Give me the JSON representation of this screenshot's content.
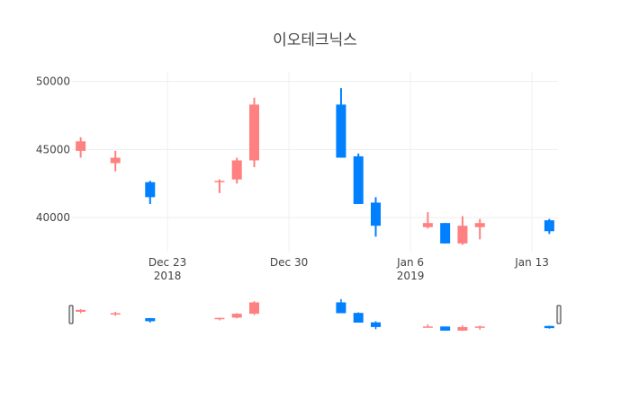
{
  "chart_data": {
    "type": "candlestick",
    "title": "이오테크닉스",
    "xlabel": "",
    "ylabel": "",
    "x_range": [
      "2018-12-18",
      "2019-01-14"
    ],
    "ylim": [
      37500,
      50700
    ],
    "y_ticks": [
      40000,
      45000,
      50000
    ],
    "y_tick_labels": [
      "40000",
      "45000",
      "50000"
    ],
    "x_ticks": [
      {
        "date": "2018-12-23",
        "label": "Dec 23",
        "sublabel": "2018"
      },
      {
        "date": "2018-12-30",
        "label": "Dec 30",
        "sublabel": ""
      },
      {
        "date": "2019-01-06",
        "label": "Jan 6",
        "sublabel": "2019"
      },
      {
        "date": "2019-01-13",
        "label": "Jan 13",
        "sublabel": ""
      }
    ],
    "increasing_color": "#ff8080",
    "decreasing_color": "#0080ff",
    "grid": true,
    "rangeslider": true,
    "candles": [
      {
        "date": "2018-12-18",
        "open": 44900,
        "high": 45900,
        "low": 44400,
        "close": 45600
      },
      {
        "date": "2018-12-20",
        "open": 44000,
        "high": 44900,
        "low": 43400,
        "close": 44400
      },
      {
        "date": "2018-12-22",
        "open": 42600,
        "high": 42700,
        "low": 41000,
        "close": 41500
      },
      {
        "date": "2018-12-26",
        "open": 42700,
        "high": 42800,
        "low": 41800,
        "close": 42700
      },
      {
        "date": "2018-12-27",
        "open": 42800,
        "high": 44400,
        "low": 42500,
        "close": 44200
      },
      {
        "date": "2018-12-28",
        "open": 44200,
        "high": 48800,
        "low": 43700,
        "close": 48300
      },
      {
        "date": "2019-01-02",
        "open": 48300,
        "high": 49500,
        "low": 44400,
        "close": 44400
      },
      {
        "date": "2019-01-03",
        "open": 44500,
        "high": 44700,
        "low": 41000,
        "close": 41000
      },
      {
        "date": "2019-01-04",
        "open": 41100,
        "high": 41500,
        "low": 38600,
        "close": 39400
      },
      {
        "date": "2019-01-07",
        "open": 39300,
        "high": 40400,
        "low": 39200,
        "close": 39600
      },
      {
        "date": "2019-01-08",
        "open": 39600,
        "high": 39600,
        "low": 38100,
        "close": 38100
      },
      {
        "date": "2019-01-09",
        "open": 38100,
        "high": 40100,
        "low": 38000,
        "close": 39400
      },
      {
        "date": "2019-01-10",
        "open": 39300,
        "high": 39900,
        "low": 38400,
        "close": 39600
      },
      {
        "date": "2019-01-14",
        "open": 39800,
        "high": 39900,
        "low": 38800,
        "close": 39000
      }
    ]
  }
}
